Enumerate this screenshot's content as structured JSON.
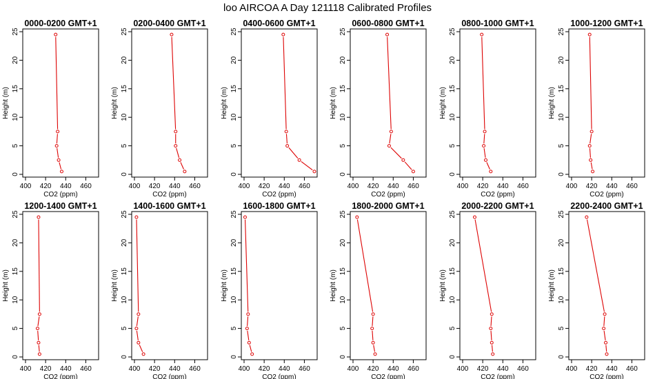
{
  "figure_title": "loo AIRCOA A  Day 121118  Calibrated Profiles",
  "chart_data": [
    {
      "type": "line",
      "title": "0000-0200 GMT+1",
      "xlabel": "CO2 (ppm)",
      "ylabel": "Height (m)",
      "xlim": [
        400,
        470
      ],
      "ylim": [
        0,
        25
      ],
      "xticks": [
        400,
        420,
        440,
        460
      ],
      "yticks": [
        0,
        5,
        10,
        15,
        20,
        25
      ],
      "x": [
        436,
        433,
        431,
        432,
        430
      ],
      "y": [
        0.5,
        2.5,
        5,
        7.5,
        24.5
      ]
    },
    {
      "type": "line",
      "title": "0200-0400 GMT+1",
      "xlabel": "CO2 (ppm)",
      "ylabel": "Height (m)",
      "xlim": [
        400,
        470
      ],
      "ylim": [
        0,
        25
      ],
      "xticks": [
        400,
        420,
        440,
        460
      ],
      "yticks": [
        0,
        5,
        10,
        15,
        20,
        25
      ],
      "x": [
        450,
        445,
        441,
        441,
        437
      ],
      "y": [
        0.5,
        2.5,
        5,
        7.5,
        24.5
      ]
    },
    {
      "type": "line",
      "title": "0400-0600 GMT+1",
      "xlabel": "CO2 (ppm)",
      "ylabel": "Height (m)",
      "xlim": [
        400,
        470
      ],
      "ylim": [
        0,
        25
      ],
      "xticks": [
        400,
        420,
        440,
        460
      ],
      "yticks": [
        0,
        5,
        10,
        15,
        20,
        25
      ],
      "x": [
        470,
        455,
        443,
        442,
        439
      ],
      "y": [
        0.5,
        2.5,
        5,
        7.5,
        24.5
      ]
    },
    {
      "type": "line",
      "title": "0600-0800 GMT+1",
      "xlabel": "CO2 (ppm)",
      "ylabel": "Height (m)",
      "xlim": [
        400,
        470
      ],
      "ylim": [
        0,
        25
      ],
      "xticks": [
        400,
        420,
        440,
        460
      ],
      "yticks": [
        0,
        5,
        10,
        15,
        20,
        25
      ],
      "x": [
        460,
        450,
        436,
        438,
        434
      ],
      "y": [
        0.5,
        2.5,
        5,
        7.5,
        24.5
      ]
    },
    {
      "type": "line",
      "title": "0800-1000 GMT+1",
      "xlabel": "CO2 (ppm)",
      "ylabel": "Height (m)",
      "xlim": [
        400,
        470
      ],
      "ylim": [
        0,
        25
      ],
      "xticks": [
        400,
        420,
        440,
        460
      ],
      "yticks": [
        0,
        5,
        10,
        15,
        20,
        25
      ],
      "x": [
        428,
        423,
        421,
        422,
        419
      ],
      "y": [
        0.5,
        2.5,
        5,
        7.5,
        24.5
      ]
    },
    {
      "type": "line",
      "title": "1000-1200 GMT+1",
      "xlabel": "CO2 (ppm)",
      "ylabel": "Height (m)",
      "xlim": [
        400,
        470
      ],
      "ylim": [
        0,
        25
      ],
      "xticks": [
        400,
        420,
        440,
        460
      ],
      "yticks": [
        0,
        5,
        10,
        15,
        20,
        25
      ],
      "x": [
        421,
        419,
        418,
        420,
        418
      ],
      "y": [
        0.5,
        2.5,
        5,
        7.5,
        24.5
      ]
    },
    {
      "type": "line",
      "title": "1200-1400 GMT+1",
      "xlabel": "CO2 (ppm)",
      "ylabel": "Height (m)",
      "xlim": [
        400,
        470
      ],
      "ylim": [
        0,
        25
      ],
      "xticks": [
        400,
        420,
        440,
        460
      ],
      "yticks": [
        0,
        5,
        10,
        15,
        20,
        25
      ],
      "x": [
        414,
        413,
        412,
        414,
        413
      ],
      "y": [
        0.5,
        2.5,
        5,
        7.5,
        24.5
      ]
    },
    {
      "type": "line",
      "title": "1400-1600 GMT+1",
      "xlabel": "CO2 (ppm)",
      "ylabel": "Height (m)",
      "xlim": [
        400,
        470
      ],
      "ylim": [
        0,
        25
      ],
      "xticks": [
        400,
        420,
        440,
        460
      ],
      "yticks": [
        0,
        5,
        10,
        15,
        20,
        25
      ],
      "x": [
        409,
        404,
        402,
        404,
        402
      ],
      "y": [
        0.5,
        2.5,
        5,
        7.5,
        24.5
      ]
    },
    {
      "type": "line",
      "title": "1600-1800 GMT+1",
      "xlabel": "CO2 (ppm)",
      "ylabel": "Height (m)",
      "xlim": [
        400,
        470
      ],
      "ylim": [
        0,
        25
      ],
      "xticks": [
        400,
        420,
        440,
        460
      ],
      "yticks": [
        0,
        5,
        10,
        15,
        20,
        25
      ],
      "x": [
        408,
        405,
        403,
        404,
        401
      ],
      "y": [
        0.5,
        2.5,
        5,
        7.5,
        24.5
      ]
    },
    {
      "type": "line",
      "title": "1800-2000 GMT+1",
      "xlabel": "CO2 (ppm)",
      "ylabel": "Height (m)",
      "xlim": [
        400,
        470
      ],
      "ylim": [
        0,
        25
      ],
      "xticks": [
        400,
        420,
        440,
        460
      ],
      "yticks": [
        0,
        5,
        10,
        15,
        20,
        25
      ],
      "x": [
        422,
        420,
        419,
        420,
        404
      ],
      "y": [
        0.5,
        2.5,
        5,
        7.5,
        24.5
      ]
    },
    {
      "type": "line",
      "title": "2000-2200 GMT+1",
      "xlabel": "CO2 (ppm)",
      "ylabel": "Height (m)",
      "xlim": [
        400,
        470
      ],
      "ylim": [
        0,
        25
      ],
      "xticks": [
        400,
        420,
        440,
        460
      ],
      "yticks": [
        0,
        5,
        10,
        15,
        20,
        25
      ],
      "x": [
        430,
        429,
        428,
        429,
        412
      ],
      "y": [
        0.5,
        2.5,
        5,
        7.5,
        24.5
      ]
    },
    {
      "type": "line",
      "title": "2200-2400 GMT+1",
      "xlabel": "CO2 (ppm)",
      "ylabel": "Height (m)",
      "xlim": [
        400,
        470
      ],
      "ylim": [
        0,
        25
      ],
      "xticks": [
        400,
        420,
        440,
        460
      ],
      "yticks": [
        0,
        5,
        10,
        15,
        20,
        25
      ],
      "x": [
        435,
        434,
        432,
        433,
        415
      ],
      "y": [
        0.5,
        2.5,
        5,
        7.5,
        24.5
      ]
    }
  ],
  "colors": {
    "series": "#dd0000",
    "axes": "#000000",
    "background": "#ffffff"
  }
}
